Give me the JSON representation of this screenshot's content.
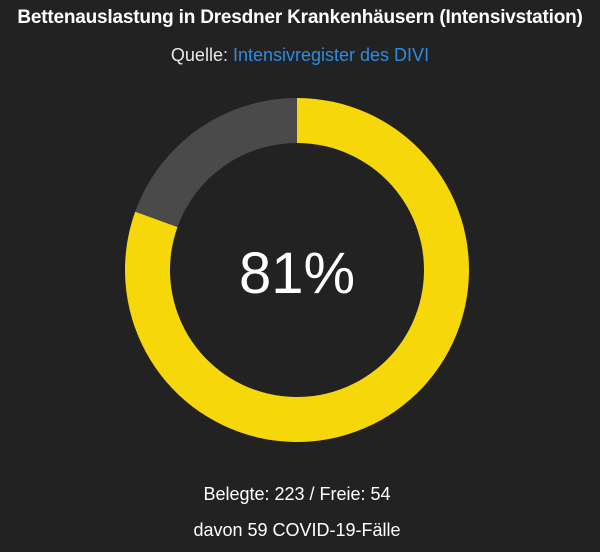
{
  "title": "Bettenauslastung in Dresdner Krankenhäusern (Intensivstation)",
  "source": {
    "label": "Quelle:",
    "link_text": "Intensivregister des DIVI"
  },
  "chart_data": {
    "type": "pie",
    "subtype": "donut-gauge",
    "title": "Bettenauslastung in Dresdner Krankenhäusern (Intensivstation)",
    "slices": [
      {
        "label": "Belegte",
        "value": 223,
        "color": "#f5d70a"
      },
      {
        "label": "Freie",
        "value": 54,
        "color": "#4a4a4a"
      }
    ],
    "center_label": "81%"
  },
  "footer": {
    "line1": "Belegte: 223 / Freie: 54",
    "line2": "davon 59 COVID-19-Fälle"
  },
  "colors": {
    "background": "#222222",
    "occupied": "#f5d70a",
    "free": "#4a4a4a",
    "link": "#2f8be0"
  }
}
